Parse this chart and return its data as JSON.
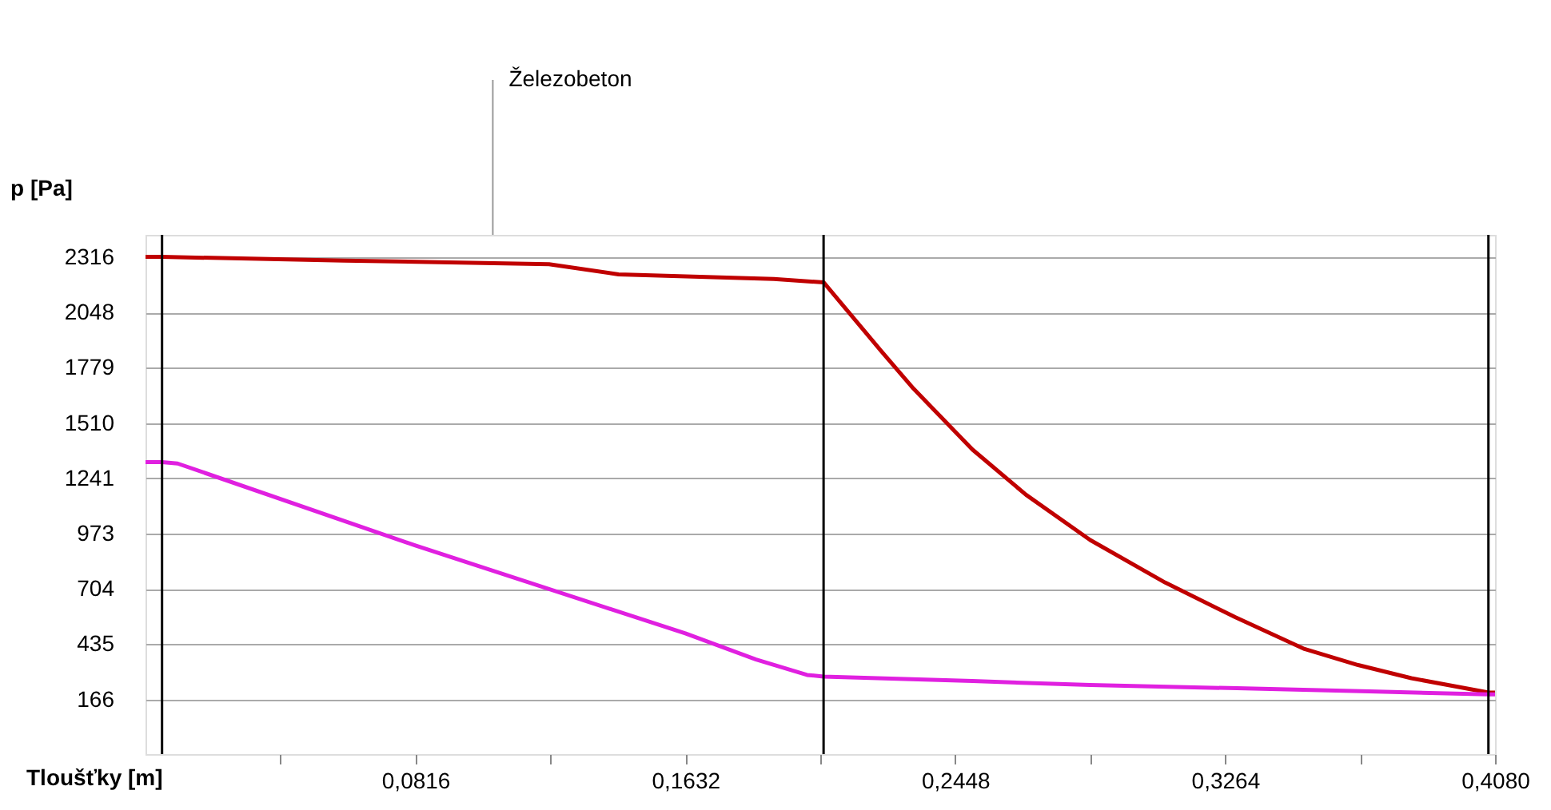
{
  "chart_data": {
    "type": "line",
    "xlabel": "Tloušťky [m]",
    "ylabel": "p [Pa]",
    "annotations": [
      "Železobeton"
    ],
    "xlim": [
      0,
      0.408
    ],
    "xticks": [
      {
        "value": 0.0408,
        "label": null
      },
      {
        "value": 0.0816,
        "label": "0,0816"
      },
      {
        "value": 0.1224,
        "label": null
      },
      {
        "value": 0.1632,
        "label": "0,1632"
      },
      {
        "value": 0.204,
        "label": null
      },
      {
        "value": 0.2448,
        "label": "0,2448"
      },
      {
        "value": 0.2856,
        "label": null
      },
      {
        "value": 0.3264,
        "label": "0,3264"
      },
      {
        "value": 0.3672,
        "label": null
      },
      {
        "value": 0.408,
        "label": "0,4080"
      }
    ],
    "ylim": [
      -100,
      2425
    ],
    "yticks": [
      166,
      435,
      704,
      973,
      1241,
      1510,
      1779,
      2048,
      2316
    ],
    "grid": "y",
    "series": [
      {
        "color": "#c00000",
        "x": [
          0,
          0.005,
          0.06,
          0.122,
          0.143,
          0.19,
          0.205,
          0.2225,
          0.2322,
          0.25,
          0.2662,
          0.2856,
          0.3083,
          0.3294,
          0.3504,
          0.3666,
          0.3827,
          0.4061,
          0.408
        ],
        "values": [
          2318,
          2318,
          2300,
          2282,
          2233,
          2210,
          2194,
          1858,
          1677,
          1381,
          1161,
          941,
          734,
          566,
          411,
          333,
          269,
          199,
          199
        ]
      },
      {
        "color": "#e020e0",
        "x": [
          0,
          0.005,
          0.0097,
          0.0816,
          0.1632,
          0.1846,
          0.2,
          0.205,
          0.25,
          0.2856,
          0.33,
          0.37,
          0.406,
          0.408
        ],
        "values": [
          1320,
          1320,
          1313,
          914,
          487,
          360,
          285,
          277,
          255,
          236,
          220,
          205,
          190,
          190
        ]
      }
    ],
    "ref_lines": [
      {
        "axis": "x",
        "value": 0.005,
        "color": "#000000"
      },
      {
        "axis": "x",
        "value": 0.205,
        "color": "#000000"
      },
      {
        "axis": "x",
        "value": 0.406,
        "color": "#000000"
      }
    ]
  }
}
